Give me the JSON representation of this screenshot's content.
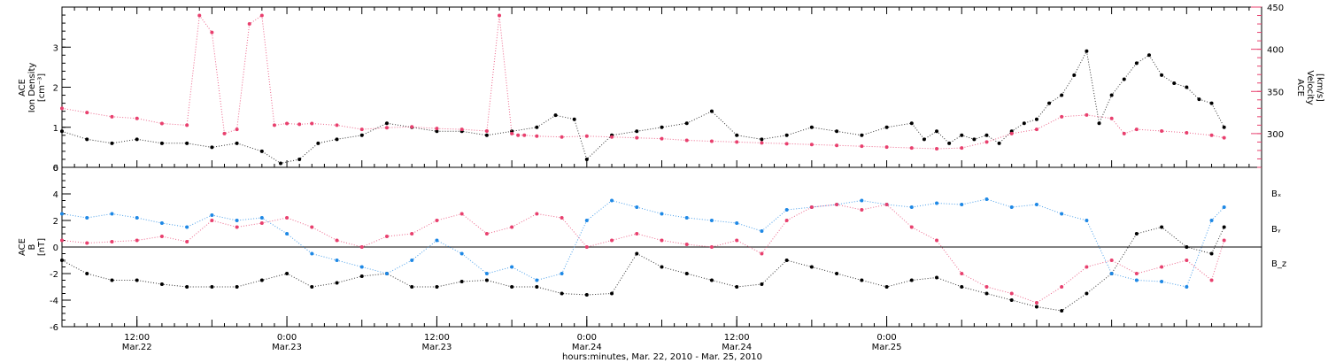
{
  "colors": {
    "black": "#000000",
    "pink": "#e8406e",
    "blue": "#1e88e5"
  },
  "chart_data": [
    {
      "type": "scatter",
      "panel": "top",
      "ylabel_line1": "ACE",
      "ylabel_line2": "Ion Density",
      "ylabel_unit": "[cm⁻³]",
      "ylim": [
        0,
        4
      ],
      "yticks": [
        "0",
        "1",
        "2",
        "3"
      ],
      "right_axis": {
        "ylabel_line1": "ACE",
        "ylabel_line2": "Velocity",
        "ylabel_unit": "[km/s]",
        "ylim": [
          260,
          450
        ],
        "yticks": [
          "300",
          "350",
          "400",
          "450"
        ]
      },
      "series": [
        {
          "color": "black",
          "axis": "left",
          "x": [
            0,
            2,
            4,
            6,
            8,
            10,
            12,
            14,
            16,
            17.5,
            19,
            20.5,
            22,
            24,
            26,
            28,
            30,
            32,
            34,
            36,
            38,
            39.5,
            41,
            42,
            44,
            46,
            48,
            50,
            52,
            54,
            56,
            58,
            60,
            62,
            64,
            66,
            68,
            69,
            70,
            71,
            72,
            73,
            74,
            75,
            76,
            77,
            78,
            79,
            80,
            81,
            82,
            83,
            84,
            85,
            86,
            87,
            88,
            89,
            90,
            91,
            92,
            93
          ],
          "y": [
            0.9,
            0.7,
            0.6,
            0.7,
            0.6,
            0.6,
            0.5,
            0.6,
            0.4,
            0.1,
            0.2,
            0.6,
            0.7,
            0.8,
            1.1,
            1.0,
            0.9,
            0.9,
            0.8,
            0.9,
            1.0,
            1.3,
            1.2,
            0.2,
            0.8,
            0.9,
            1.0,
            1.1,
            1.4,
            0.8,
            0.7,
            0.8,
            1.0,
            0.9,
            0.8,
            1.0,
            1.1,
            0.7,
            0.9,
            0.6,
            0.8,
            0.7,
            0.8,
            0.6,
            0.9,
            1.1,
            1.2,
            1.6,
            1.8,
            2.3,
            2.9,
            1.1,
            1.8,
            2.2,
            2.6,
            2.8,
            2.3,
            2.1,
            2.0,
            1.7,
            1.6,
            1.0
          ]
        },
        {
          "color": "pink",
          "axis": "right",
          "x": [
            0,
            2,
            4,
            6,
            8,
            10,
            11,
            12,
            13,
            14,
            15,
            16,
            17,
            18,
            19,
            20,
            22,
            24,
            26,
            28,
            30,
            32,
            34,
            35,
            36,
            36.5,
            37,
            38,
            40,
            42,
            44,
            46,
            48,
            50,
            52,
            54,
            56,
            58,
            60,
            62,
            64,
            66,
            68,
            70,
            72,
            74,
            76,
            78,
            80,
            82,
            84,
            85,
            86,
            88,
            90,
            92,
            93
          ],
          "y": [
            330,
            325,
            320,
            318,
            312,
            310,
            440,
            420,
            300,
            305,
            430,
            440,
            310,
            312,
            311,
            312,
            310,
            305,
            307,
            308,
            306,
            305,
            303,
            440,
            300,
            298,
            298,
            297,
            296,
            297,
            296,
            295,
            294,
            292,
            291,
            290,
            289,
            288,
            287,
            286,
            285,
            284,
            283,
            282,
            283,
            290,
            300,
            305,
            320,
            322,
            318,
            300,
            305,
            303,
            301,
            298,
            295
          ]
        }
      ]
    },
    {
      "type": "scatter",
      "panel": "bottom",
      "ylabel_line1": "ACE",
      "ylabel_line2": "B",
      "ylabel_unit": "[nT]",
      "ylim": [
        -6,
        6
      ],
      "yticks": [
        "-6",
        "-4",
        "-2",
        "0",
        "2",
        "4",
        "6"
      ],
      "legend_position": "right",
      "series": [
        {
          "name": "Bₓ",
          "color": "black",
          "x": [
            0,
            2,
            4,
            6,
            8,
            10,
            12,
            14,
            16,
            18,
            20,
            22,
            24,
            26,
            28,
            30,
            32,
            34,
            36,
            38,
            40,
            42,
            44,
            46,
            48,
            50,
            52,
            54,
            56,
            58,
            60,
            62,
            64,
            66,
            68,
            70,
            72,
            74,
            76,
            78,
            80,
            82,
            84,
            86,
            88,
            90,
            92,
            93
          ],
          "y": [
            -1,
            -2,
            -2.5,
            -2.5,
            -2.8,
            -3,
            -3,
            -3,
            -2.5,
            -2,
            -3,
            -2.7,
            -2.2,
            -2,
            -3,
            -3,
            -2.6,
            -2.5,
            -3,
            -3,
            -3.5,
            -3.6,
            -3.5,
            -0.5,
            -1.5,
            -2,
            -2.5,
            -3,
            -2.8,
            -1,
            -1.5,
            -2,
            -2.5,
            -3,
            -2.5,
            -2.3,
            -3,
            -3.5,
            -4,
            -4.5,
            -4.8,
            -3.5,
            -2,
            1,
            1.5,
            0,
            -0.5,
            1.5
          ]
        },
        {
          "name": "Bᵧ",
          "color": "blue",
          "x": [
            0,
            2,
            4,
            6,
            8,
            10,
            12,
            14,
            16,
            18,
            20,
            22,
            24,
            26,
            28,
            30,
            32,
            34,
            36,
            38,
            40,
            42,
            44,
            46,
            48,
            50,
            52,
            54,
            56,
            58,
            60,
            62,
            64,
            66,
            68,
            70,
            72,
            74,
            76,
            78,
            80,
            82,
            84,
            86,
            88,
            90,
            92,
            93
          ],
          "y": [
            2.5,
            2.2,
            2.5,
            2.2,
            1.8,
            1.5,
            2.4,
            2.0,
            2.2,
            1.0,
            -0.5,
            -1,
            -1.5,
            -2,
            -1,
            0.5,
            -0.5,
            -2,
            -1.5,
            -2.5,
            -2,
            2,
            3.5,
            3,
            2.5,
            2.2,
            2,
            1.8,
            1.2,
            2.8,
            3.0,
            3.2,
            3.5,
            3.2,
            3.0,
            3.3,
            3.2,
            3.6,
            3.0,
            3.2,
            2.5,
            2.0,
            -2,
            -2.5,
            -2.6,
            -3,
            2,
            3
          ]
        },
        {
          "name": "B_z",
          "color": "pink",
          "x": [
            0,
            2,
            4,
            6,
            8,
            10,
            12,
            14,
            16,
            18,
            20,
            22,
            24,
            26,
            28,
            30,
            32,
            34,
            36,
            38,
            40,
            42,
            44,
            46,
            48,
            50,
            52,
            54,
            56,
            58,
            60,
            62,
            64,
            66,
            68,
            70,
            72,
            74,
            76,
            78,
            80,
            82,
            84,
            86,
            88,
            90,
            92,
            93
          ],
          "y": [
            0.5,
            0.3,
            0.4,
            0.5,
            0.8,
            0.4,
            2.0,
            1.5,
            1.8,
            2.2,
            1.5,
            0.5,
            0,
            0.8,
            1.0,
            2.0,
            2.5,
            1.0,
            1.5,
            2.5,
            2.2,
            0,
            0.5,
            1,
            0.5,
            0.2,
            0,
            0.5,
            -0.5,
            2,
            3,
            3.2,
            2.8,
            3.2,
            1.5,
            0.5,
            -2,
            -3,
            -3.5,
            -4.2,
            -3,
            -1.5,
            -1,
            -2,
            -1.5,
            -1,
            -2.5,
            0.5
          ]
        }
      ]
    }
  ],
  "x_axis": {
    "xlim": [
      0,
      96
    ],
    "ticks": [
      {
        "x": 6,
        "time": "12:00",
        "date": "Mar.22"
      },
      {
        "x": 18,
        "time": "0:00",
        "date": "Mar.23"
      },
      {
        "x": 30,
        "time": "12:00",
        "date": "Mar.23"
      },
      {
        "x": 42,
        "time": "0:00",
        "date": "Mar.24"
      },
      {
        "x": 54,
        "time": "12:00",
        "date": "Mar.24"
      },
      {
        "x": 66,
        "time": "0:00",
        "date": "Mar.25"
      }
    ],
    "label": "hours:minutes, Mar. 22, 2010 - Mar. 25, 2010"
  }
}
